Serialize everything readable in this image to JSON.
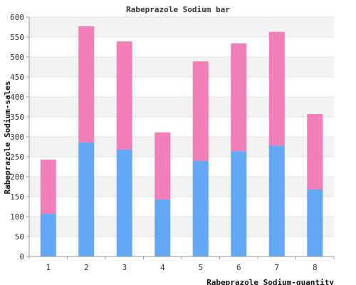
{
  "chart_data": {
    "type": "bar",
    "stacked": true,
    "title": "Rabeprazole Sodium bar",
    "xlabel": "Rabeprazole Sodium-quantity",
    "ylabel": "Rabeprazole Sodium-sales",
    "categories": [
      "1",
      "2",
      "3",
      "4",
      "5",
      "6",
      "7",
      "8"
    ],
    "ylim": [
      0,
      600
    ],
    "yticks": [
      0,
      50,
      100,
      150,
      200,
      250,
      300,
      350,
      400,
      450,
      500,
      550,
      600
    ],
    "grid": true,
    "legend": "none",
    "series": [
      {
        "values": [
          107,
          286,
          268,
          143,
          240,
          264,
          278,
          168
        ],
        "color": "#62a8f5"
      },
      {
        "values": [
          136,
          291,
          271,
          168,
          249,
          270,
          285,
          189
        ],
        "color": "#f27fb7"
      }
    ]
  }
}
